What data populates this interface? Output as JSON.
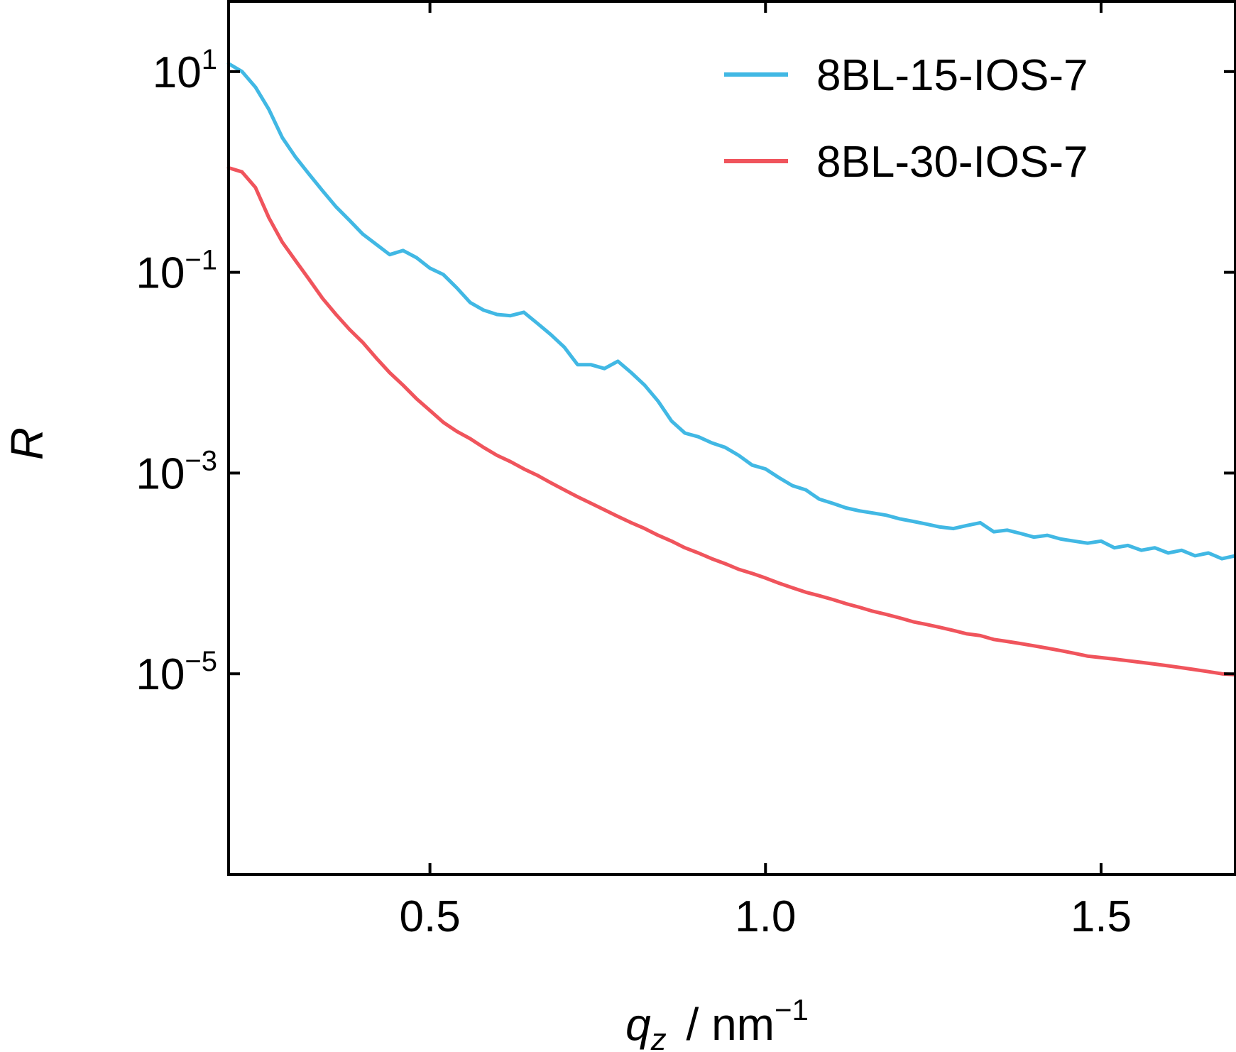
{
  "chart_data": {
    "type": "line",
    "xlabel": {
      "var": "q",
      "sub": "z",
      "unit": "nm",
      "unit_exp": "−1"
    },
    "ylabel": "R",
    "xscale": "linear",
    "yscale": "log",
    "xlim": [
      0.2,
      1.7
    ],
    "ylim": [
      1e-07,
      50
    ],
    "xticks": [
      {
        "value": 0.5,
        "label": "0.5"
      },
      {
        "value": 1.0,
        "label": "1.0"
      },
      {
        "value": 1.5,
        "label": "1.5"
      }
    ],
    "yticks": [
      {
        "value": 10,
        "base": "10",
        "exp": "1"
      },
      {
        "value": 0.1,
        "base": "10",
        "exp": "−1"
      },
      {
        "value": 0.001,
        "base": "10",
        "exp": "−3"
      },
      {
        "value": 1e-05,
        "base": "10",
        "exp": "−5"
      }
    ],
    "grid": false,
    "legend_position": "top-right",
    "series": [
      {
        "name": "8BL-15-IOS-7",
        "color": "#41b8e4",
        "x": [
          0.2,
          0.22,
          0.24,
          0.26,
          0.28,
          0.3,
          0.32,
          0.34,
          0.36,
          0.38,
          0.4,
          0.42,
          0.44,
          0.46,
          0.48,
          0.5,
          0.52,
          0.54,
          0.56,
          0.58,
          0.6,
          0.62,
          0.64,
          0.66,
          0.68,
          0.7,
          0.72,
          0.74,
          0.76,
          0.78,
          0.8,
          0.82,
          0.84,
          0.86,
          0.88,
          0.9,
          0.92,
          0.94,
          0.96,
          0.98,
          1.0,
          1.02,
          1.04,
          1.06,
          1.08,
          1.1,
          1.12,
          1.14,
          1.16,
          1.18,
          1.2,
          1.22,
          1.24,
          1.26,
          1.28,
          1.3,
          1.32,
          1.34,
          1.36,
          1.38,
          1.4,
          1.42,
          1.44,
          1.46,
          1.48,
          1.5,
          1.52,
          1.54,
          1.56,
          1.58,
          1.6,
          1.62,
          1.64,
          1.66,
          1.68,
          1.7
        ],
        "y": [
          12.0,
          10.0,
          7.0,
          4.2,
          2.2,
          1.4,
          0.95,
          0.65,
          0.45,
          0.33,
          0.24,
          0.19,
          0.15,
          0.165,
          0.14,
          0.11,
          0.095,
          0.07,
          0.05,
          0.042,
          0.038,
          0.037,
          0.04,
          0.031,
          0.024,
          0.018,
          0.012,
          0.012,
          0.011,
          0.013,
          0.01,
          0.0075,
          0.0052,
          0.0033,
          0.0025,
          0.0023,
          0.002,
          0.0018,
          0.0015,
          0.0012,
          0.0011,
          0.0009,
          0.00075,
          0.00068,
          0.00055,
          0.0005,
          0.00045,
          0.00042,
          0.0004,
          0.00038,
          0.00035,
          0.00033,
          0.00031,
          0.00029,
          0.00028,
          0.0003,
          0.00032,
          0.00026,
          0.00027,
          0.00025,
          0.00023,
          0.00024,
          0.00022,
          0.00021,
          0.0002,
          0.00021,
          0.00018,
          0.00019,
          0.00017,
          0.00018,
          0.00016,
          0.00017,
          0.00015,
          0.00016,
          0.00014,
          0.00015
        ]
      },
      {
        "name": "8BL-30-IOS-7",
        "color": "#f0545c",
        "x": [
          0.2,
          0.22,
          0.24,
          0.26,
          0.28,
          0.3,
          0.32,
          0.34,
          0.36,
          0.38,
          0.4,
          0.42,
          0.44,
          0.46,
          0.48,
          0.5,
          0.52,
          0.54,
          0.56,
          0.58,
          0.6,
          0.62,
          0.64,
          0.66,
          0.68,
          0.7,
          0.72,
          0.74,
          0.76,
          0.78,
          0.8,
          0.82,
          0.84,
          0.86,
          0.88,
          0.9,
          0.92,
          0.94,
          0.96,
          0.98,
          1.0,
          1.02,
          1.04,
          1.06,
          1.08,
          1.1,
          1.12,
          1.14,
          1.16,
          1.18,
          1.2,
          1.22,
          1.24,
          1.26,
          1.28,
          1.3,
          1.32,
          1.34,
          1.36,
          1.38,
          1.4,
          1.42,
          1.44,
          1.46,
          1.48,
          1.5,
          1.52,
          1.54,
          1.56,
          1.58,
          1.6,
          1.62,
          1.64,
          1.66,
          1.68,
          1.7
        ],
        "y": [
          1.1,
          1.0,
          0.7,
          0.35,
          0.2,
          0.13,
          0.085,
          0.055,
          0.038,
          0.027,
          0.02,
          0.014,
          0.01,
          0.0075,
          0.0055,
          0.0042,
          0.0032,
          0.0026,
          0.0022,
          0.0018,
          0.0015,
          0.0013,
          0.0011,
          0.00095,
          0.0008,
          0.00068,
          0.00058,
          0.0005,
          0.00043,
          0.00037,
          0.00032,
          0.00028,
          0.00024,
          0.00021,
          0.00018,
          0.00016,
          0.00014,
          0.000125,
          0.00011,
          0.0001,
          9e-05,
          8e-05,
          7.2e-05,
          6.5e-05,
          6e-05,
          5.5e-05,
          5e-05,
          4.6e-05,
          4.2e-05,
          3.9e-05,
          3.6e-05,
          3.3e-05,
          3.1e-05,
          2.9e-05,
          2.7e-05,
          2.5e-05,
          2.4e-05,
          2.2e-05,
          2.1e-05,
          2e-05,
          1.9e-05,
          1.8e-05,
          1.7e-05,
          1.6e-05,
          1.5e-05,
          1.45e-05,
          1.4e-05,
          1.35e-05,
          1.3e-05,
          1.25e-05,
          1.2e-05,
          1.15e-05,
          1.1e-05,
          1.05e-05,
          1e-05,
          9.8e-06
        ]
      }
    ]
  }
}
